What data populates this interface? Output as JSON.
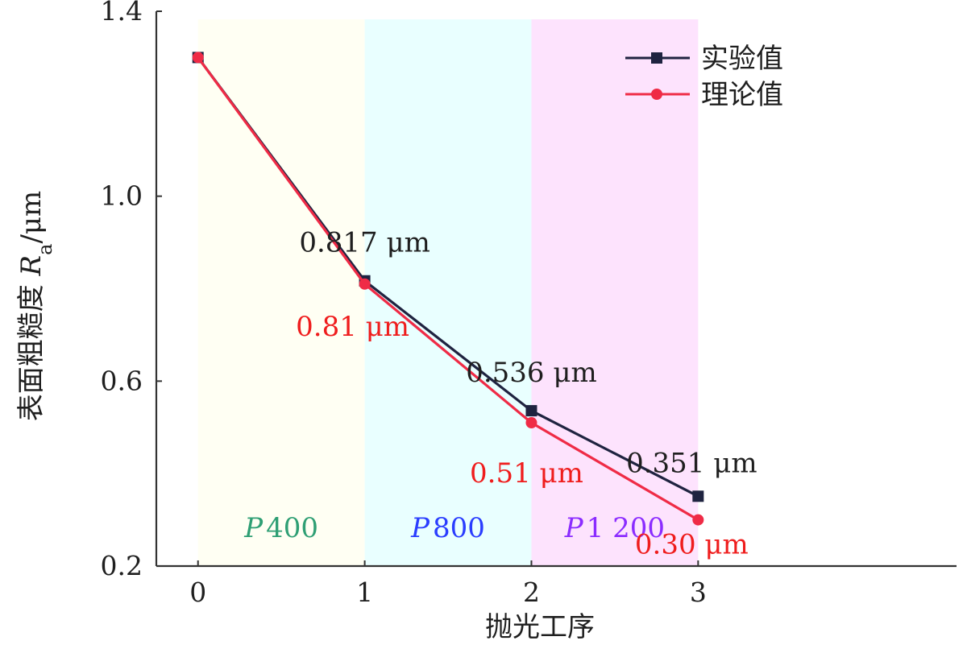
{
  "chart_data": {
    "type": "line",
    "title": "",
    "xlabel": "抛光工序",
    "ylabel": {
      "prefix": "表面粗糙度 ",
      "symbol": "R",
      "subscript": "a",
      "suffix": "/μm"
    },
    "x": [
      0,
      1,
      2,
      3
    ],
    "xlim": [
      -0.25,
      4.55
    ],
    "ylim": [
      0.2,
      1.4
    ],
    "xticks": [
      0,
      1,
      2,
      3
    ],
    "xtick_labels": [
      "0",
      "1",
      "2",
      "3"
    ],
    "yticks": [
      0.2,
      0.6,
      1.0,
      1.4
    ],
    "ytick_labels": [
      "0.2",
      "0.6",
      "1.0",
      "1.4"
    ],
    "grid": false,
    "legend_position": "top-right",
    "background_regions": [
      {
        "name": "P400",
        "label_prefix": "P",
        "label_value": "400",
        "x_start": 0,
        "x_end": 1,
        "fill": "#fffff3",
        "label_color": "#2f9f74"
      },
      {
        "name": "P800",
        "label_prefix": "P",
        "label_value": "800",
        "x_start": 1,
        "x_end": 2,
        "fill": "#e9ffff",
        "label_color": "#2a3dff"
      },
      {
        "name": "P1200",
        "label_prefix": "P",
        "label_value": "1 200",
        "x_start": 2,
        "x_end": 3,
        "fill": "#fde3fd",
        "label_color": "#8b2cff"
      }
    ],
    "series": [
      {
        "name": "实验值",
        "values": [
          1.3,
          0.817,
          0.536,
          0.351
        ],
        "color": "#1f2340",
        "marker": "square"
      },
      {
        "name": "理论值",
        "values": [
          1.3,
          0.81,
          0.51,
          0.3
        ],
        "color": "#ef2b46",
        "marker": "circle"
      }
    ],
    "annotations": [
      {
        "text": "0.817 μm",
        "series_index": 0,
        "point_index": 1,
        "color": "#1f1f1f"
      },
      {
        "text": "0.81 μm",
        "series_index": 1,
        "point_index": 1,
        "color": "#ef1d1d"
      },
      {
        "text": "0.536 μm",
        "series_index": 0,
        "point_index": 2,
        "color": "#1f1f1f"
      },
      {
        "text": "0.51 μm",
        "series_index": 1,
        "point_index": 2,
        "color": "#ef1d1d"
      },
      {
        "text": "0.351 μm",
        "series_index": 0,
        "point_index": 3,
        "color": "#1f1f1f"
      },
      {
        "text": "0.30 μm",
        "series_index": 1,
        "point_index": 3,
        "color": "#ef1d1d"
      }
    ]
  }
}
